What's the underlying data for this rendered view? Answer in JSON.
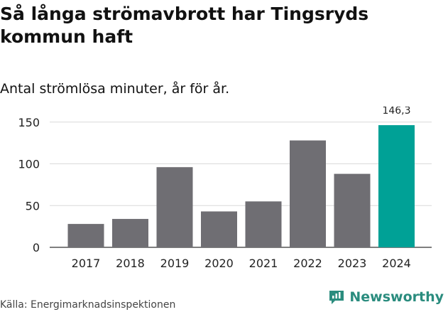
{
  "title": "Så långa strömavbrott har Tingsryds kommun haft",
  "subtitle": "Antal strömlösa minuter, år för år.",
  "source": "Källa: Energimarknadsinspektionen",
  "brand": {
    "name": "Newsworthy",
    "icon": "newsworthy-logo-icon",
    "color": "#2a8c7e"
  },
  "colors": {
    "bar": "#6f6e73",
    "highlight": "#00a196",
    "grid": "#d9d9d9"
  },
  "chart_data": {
    "type": "bar",
    "title": "Så långa strömavbrott har Tingsryds kommun haft",
    "subtitle": "Antal strömlösa minuter, år för år.",
    "xlabel": "",
    "ylabel": "",
    "categories": [
      "2017",
      "2018",
      "2019",
      "2020",
      "2021",
      "2022",
      "2023",
      "2024"
    ],
    "values": [
      28,
      34,
      96,
      43,
      55,
      128,
      88,
      146.3
    ],
    "highlight_index": 7,
    "data_labels": [
      {
        "index": 7,
        "text": "146,3"
      }
    ],
    "yticks": [
      0,
      50,
      100,
      150
    ],
    "ylim": [
      0,
      160
    ],
    "grid": true
  }
}
